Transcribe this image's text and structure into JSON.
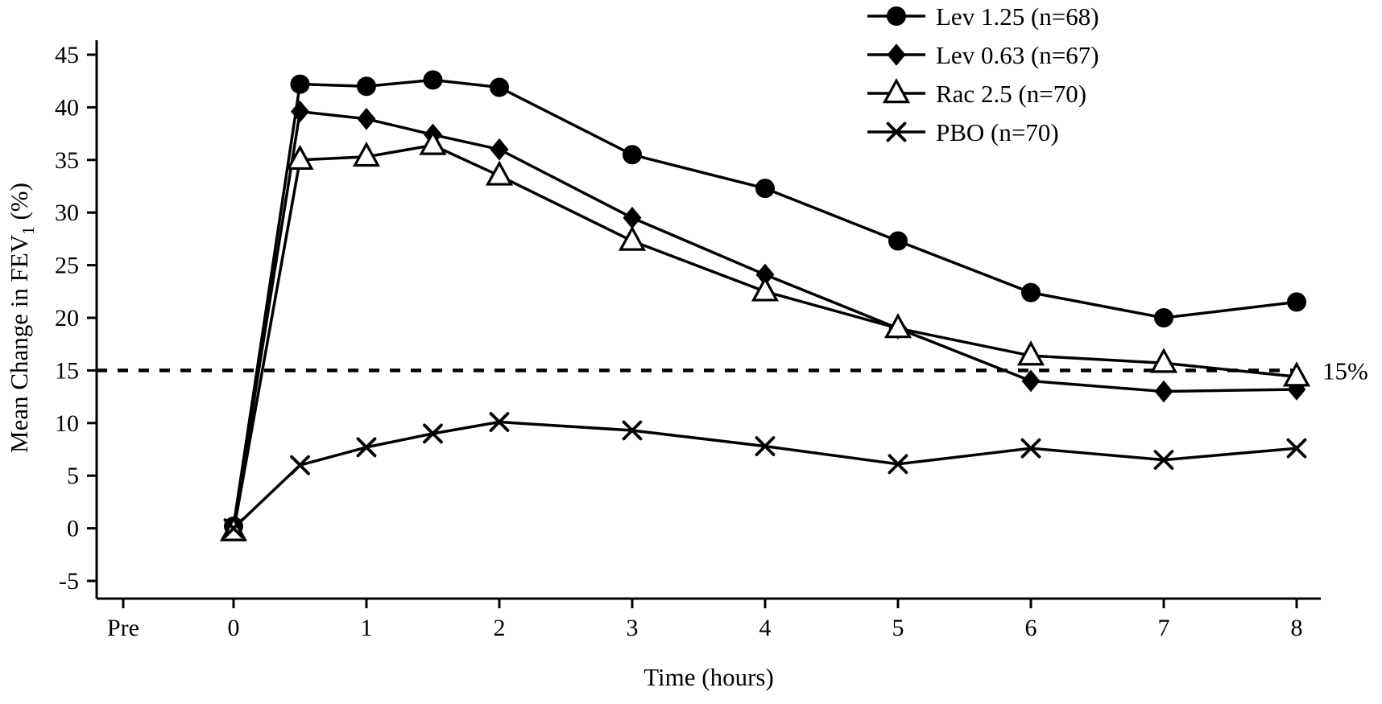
{
  "figure": {
    "background": "#ffffff",
    "foreground": "#000000"
  },
  "chart_data": {
    "type": "line",
    "title": "",
    "xlabel": "Time (hours)",
    "ylabel": {
      "pre": "Mean Change in FEV",
      "sub": "1",
      "post": " (%)"
    },
    "ylim": [
      -5,
      45
    ],
    "ytick_step": 5,
    "grid": false,
    "legend_position": "top-right",
    "color": "#000000",
    "x": [
      0,
      0.5,
      1,
      1.5,
      2,
      3,
      4,
      5,
      6,
      7,
      8
    ],
    "xticks": [
      {
        "label": "Pre",
        "hour": null
      },
      {
        "label": "0",
        "hour": 0
      },
      {
        "label": "1",
        "hour": 1
      },
      {
        "label": "2",
        "hour": 2
      },
      {
        "label": "3",
        "hour": 3
      },
      {
        "label": "4",
        "hour": 4
      },
      {
        "label": "5",
        "hour": 5
      },
      {
        "label": "6",
        "hour": 6
      },
      {
        "label": "7",
        "hour": 7
      },
      {
        "label": "8",
        "hour": 8
      }
    ],
    "series": [
      {
        "name": "Lev 1.25 (n=68)",
        "marker": "filled-circle",
        "values": [
          0.2,
          42.2,
          42.0,
          42.6,
          41.9,
          35.5,
          32.3,
          27.3,
          22.4,
          20.0,
          21.5
        ]
      },
      {
        "name": "Lev 0.63 (n=67)",
        "marker": "filled-diamond",
        "values": [
          0.0,
          39.6,
          38.9,
          37.4,
          36.0,
          29.5,
          24.1,
          19.0,
          14.0,
          13.0,
          13.2
        ]
      },
      {
        "name": "Rac 2.5 (n=70)",
        "marker": "open-triangle",
        "values": [
          -0.3,
          35.0,
          35.3,
          36.4,
          33.5,
          27.3,
          22.5,
          19.0,
          16.4,
          15.7,
          14.4
        ]
      },
      {
        "name": "PBO (n=70)",
        "marker": "x-cross",
        "values": [
          0.0,
          6.0,
          7.7,
          9.0,
          10.1,
          9.3,
          7.8,
          6.1,
          7.6,
          6.5,
          7.6
        ]
      }
    ],
    "reference_line": {
      "value": 15,
      "label": "15%",
      "style": "dashed"
    }
  }
}
